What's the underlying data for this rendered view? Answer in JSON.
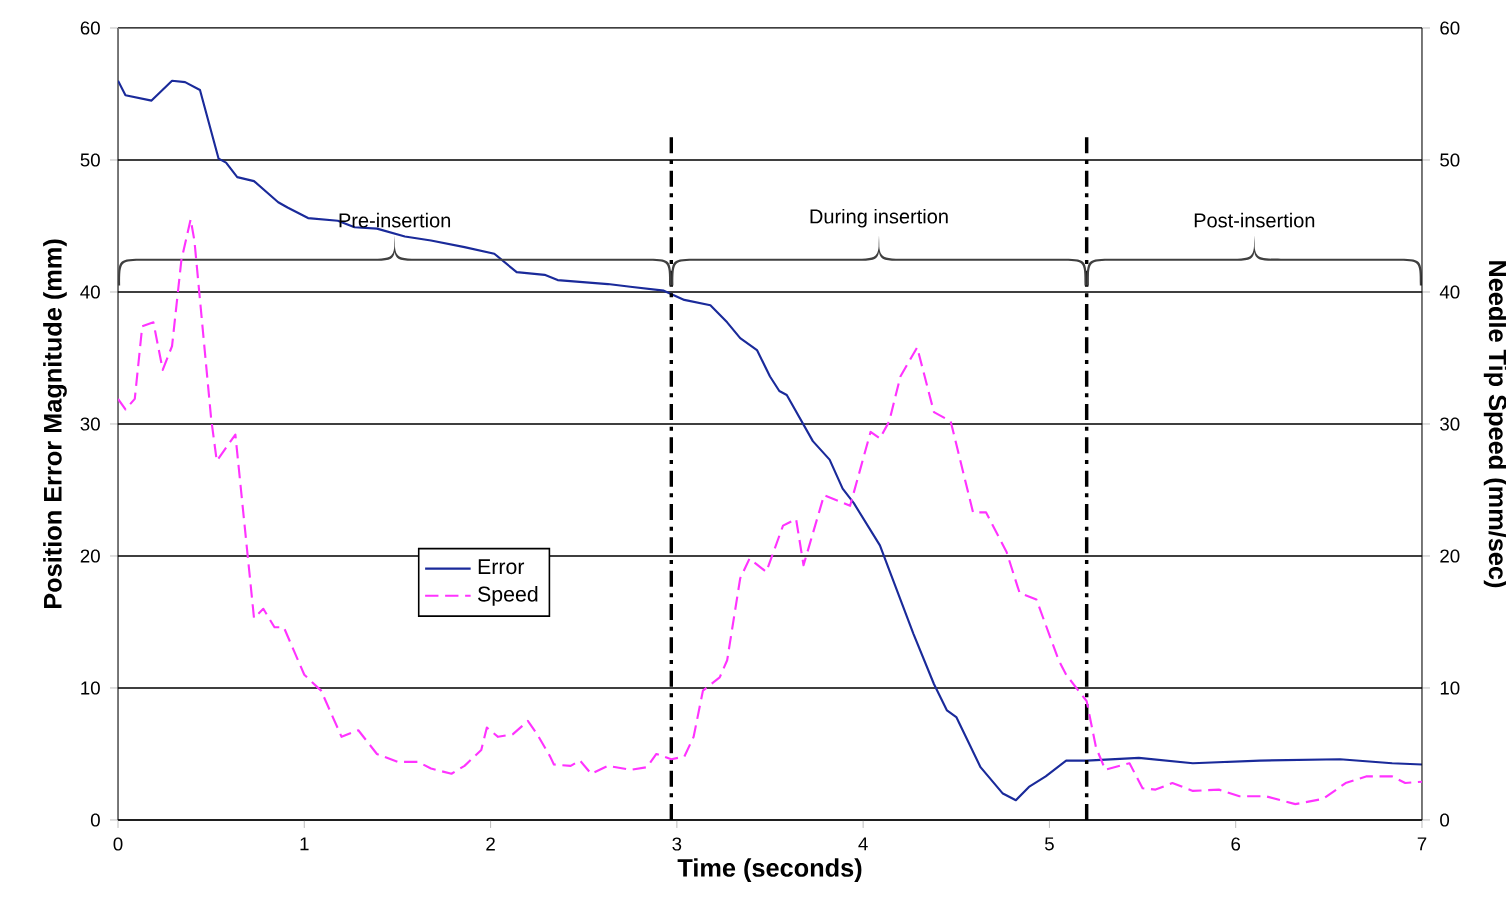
{
  "chart_data": {
    "type": "line",
    "xlabel": "Time (seconds)",
    "ylabel": "Position Error Magnitude (mm)",
    "y2label": "Needle Tip Speed (mm/sec)",
    "xlim": [
      0,
      7
    ],
    "xticks": [
      0,
      1,
      2,
      3,
      4,
      5,
      6,
      7
    ],
    "ylim": [
      0,
      60
    ],
    "yticks": [
      0,
      10,
      20,
      30,
      40,
      50,
      60
    ],
    "y2lim": [
      0,
      60
    ],
    "y2ticks": [
      0,
      10,
      20,
      30,
      40,
      50,
      60
    ],
    "grid": "y",
    "legend": "left",
    "series": [
      {
        "name": "Error",
        "color": "#1a2a9a",
        "line_style": "solid",
        "x": [
          0,
          0.04,
          0.18,
          0.29,
          0.36,
          0.44,
          0.54,
          0.58,
          0.64,
          0.73,
          0.86,
          0.91,
          1.02,
          1.18,
          1.27,
          1.39,
          1.54,
          1.68,
          1.86,
          2.02,
          2.14,
          2.29,
          2.36,
          2.63,
          2.75,
          2.93,
          3.04,
          3.18,
          3.27,
          3.34,
          3.43,
          3.5,
          3.55,
          3.59,
          3.73,
          3.82,
          3.89,
          3.95,
          4.09,
          4.27,
          4.38,
          4.45,
          4.5,
          4.63,
          4.75,
          4.82,
          4.89,
          4.98,
          5.09,
          5.2,
          5.48,
          5.77,
          6.13,
          6.56,
          6.84,
          7.0
        ],
        "values": [
          56.0,
          54.9,
          54.5,
          56.0,
          55.9,
          55.3,
          50.1,
          49.8,
          48.7,
          48.4,
          46.8,
          46.4,
          45.6,
          45.4,
          44.9,
          44.8,
          44.2,
          43.9,
          43.4,
          42.9,
          41.5,
          41.3,
          40.9,
          40.6,
          40.4,
          40.1,
          39.4,
          39.0,
          37.7,
          36.5,
          35.6,
          33.6,
          32.5,
          32.2,
          28.7,
          27.3,
          25.1,
          24.0,
          20.8,
          14.1,
          10.3,
          8.3,
          7.8,
          4.0,
          2.0,
          1.5,
          2.5,
          3.3,
          4.5,
          4.5,
          4.7,
          4.3,
          4.5,
          4.6,
          4.3,
          4.2
        ]
      },
      {
        "name": "Speed",
        "color": "#ff33ff",
        "line_style": "dashed",
        "axis": "y2",
        "x": [
          0,
          0.04,
          0.09,
          0.13,
          0.19,
          0.24,
          0.29,
          0.34,
          0.39,
          0.41,
          0.5,
          0.53,
          0.63,
          0.73,
          0.78,
          0.84,
          0.89,
          1.0,
          1.09,
          1.2,
          1.29,
          1.39,
          1.5,
          1.61,
          1.68,
          1.79,
          1.86,
          1.95,
          1.98,
          2.04,
          2.12,
          2.2,
          2.25,
          2.32,
          2.34,
          2.43,
          2.48,
          2.54,
          2.63,
          2.75,
          2.84,
          2.89,
          2.97,
          3.04,
          3.09,
          3.14,
          3.23,
          3.27,
          3.34,
          3.39,
          3.48,
          3.57,
          3.64,
          3.68,
          3.79,
          3.93,
          4.04,
          4.09,
          4.14,
          4.2,
          4.29,
          4.38,
          4.47,
          4.59,
          4.66,
          4.77,
          4.84,
          4.93,
          5.05,
          5.09,
          5.2,
          5.25,
          5.3,
          5.43,
          5.5,
          5.57,
          5.66,
          5.77,
          5.91,
          6.02,
          6.16,
          6.32,
          6.47,
          6.59,
          6.7,
          6.84,
          6.91,
          7.0
        ],
        "values": [
          31.9,
          31.1,
          31.9,
          37.4,
          37.7,
          34.1,
          35.9,
          42.4,
          45.5,
          43.9,
          30.4,
          27.2,
          29.2,
          15.3,
          16.0,
          14.6,
          14.6,
          11.0,
          9.8,
          6.3,
          6.8,
          5.0,
          4.4,
          4.4,
          3.9,
          3.5,
          4.1,
          5.3,
          7.0,
          6.3,
          6.5,
          7.5,
          6.5,
          4.8,
          4.2,
          4.1,
          4.5,
          3.5,
          4.1,
          3.8,
          4.0,
          5.0,
          4.6,
          4.8,
          6.3,
          9.8,
          10.8,
          12.1,
          18.3,
          19.8,
          18.8,
          22.3,
          22.8,
          19.3,
          24.6,
          23.8,
          29.4,
          28.9,
          30.2,
          33.6,
          35.8,
          30.9,
          30.2,
          23.3,
          23.3,
          20.3,
          17.2,
          16.7,
          12.1,
          11.0,
          9.0,
          5.5,
          3.8,
          4.3,
          2.4,
          2.3,
          2.8,
          2.2,
          2.3,
          1.8,
          1.8,
          1.2,
          1.6,
          2.8,
          3.3,
          3.3,
          2.8,
          2.9
        ]
      }
    ],
    "ref_lines": [
      {
        "axis": "x",
        "value": 2.97,
        "line_style": "dashdot",
        "color": "#000000"
      },
      {
        "axis": "x",
        "value": 5.2,
        "line_style": "dashdot",
        "color": "#000000"
      }
    ],
    "annotations": [
      "Pre-insertion",
      "During insertion",
      "Post-insertion"
    ]
  }
}
